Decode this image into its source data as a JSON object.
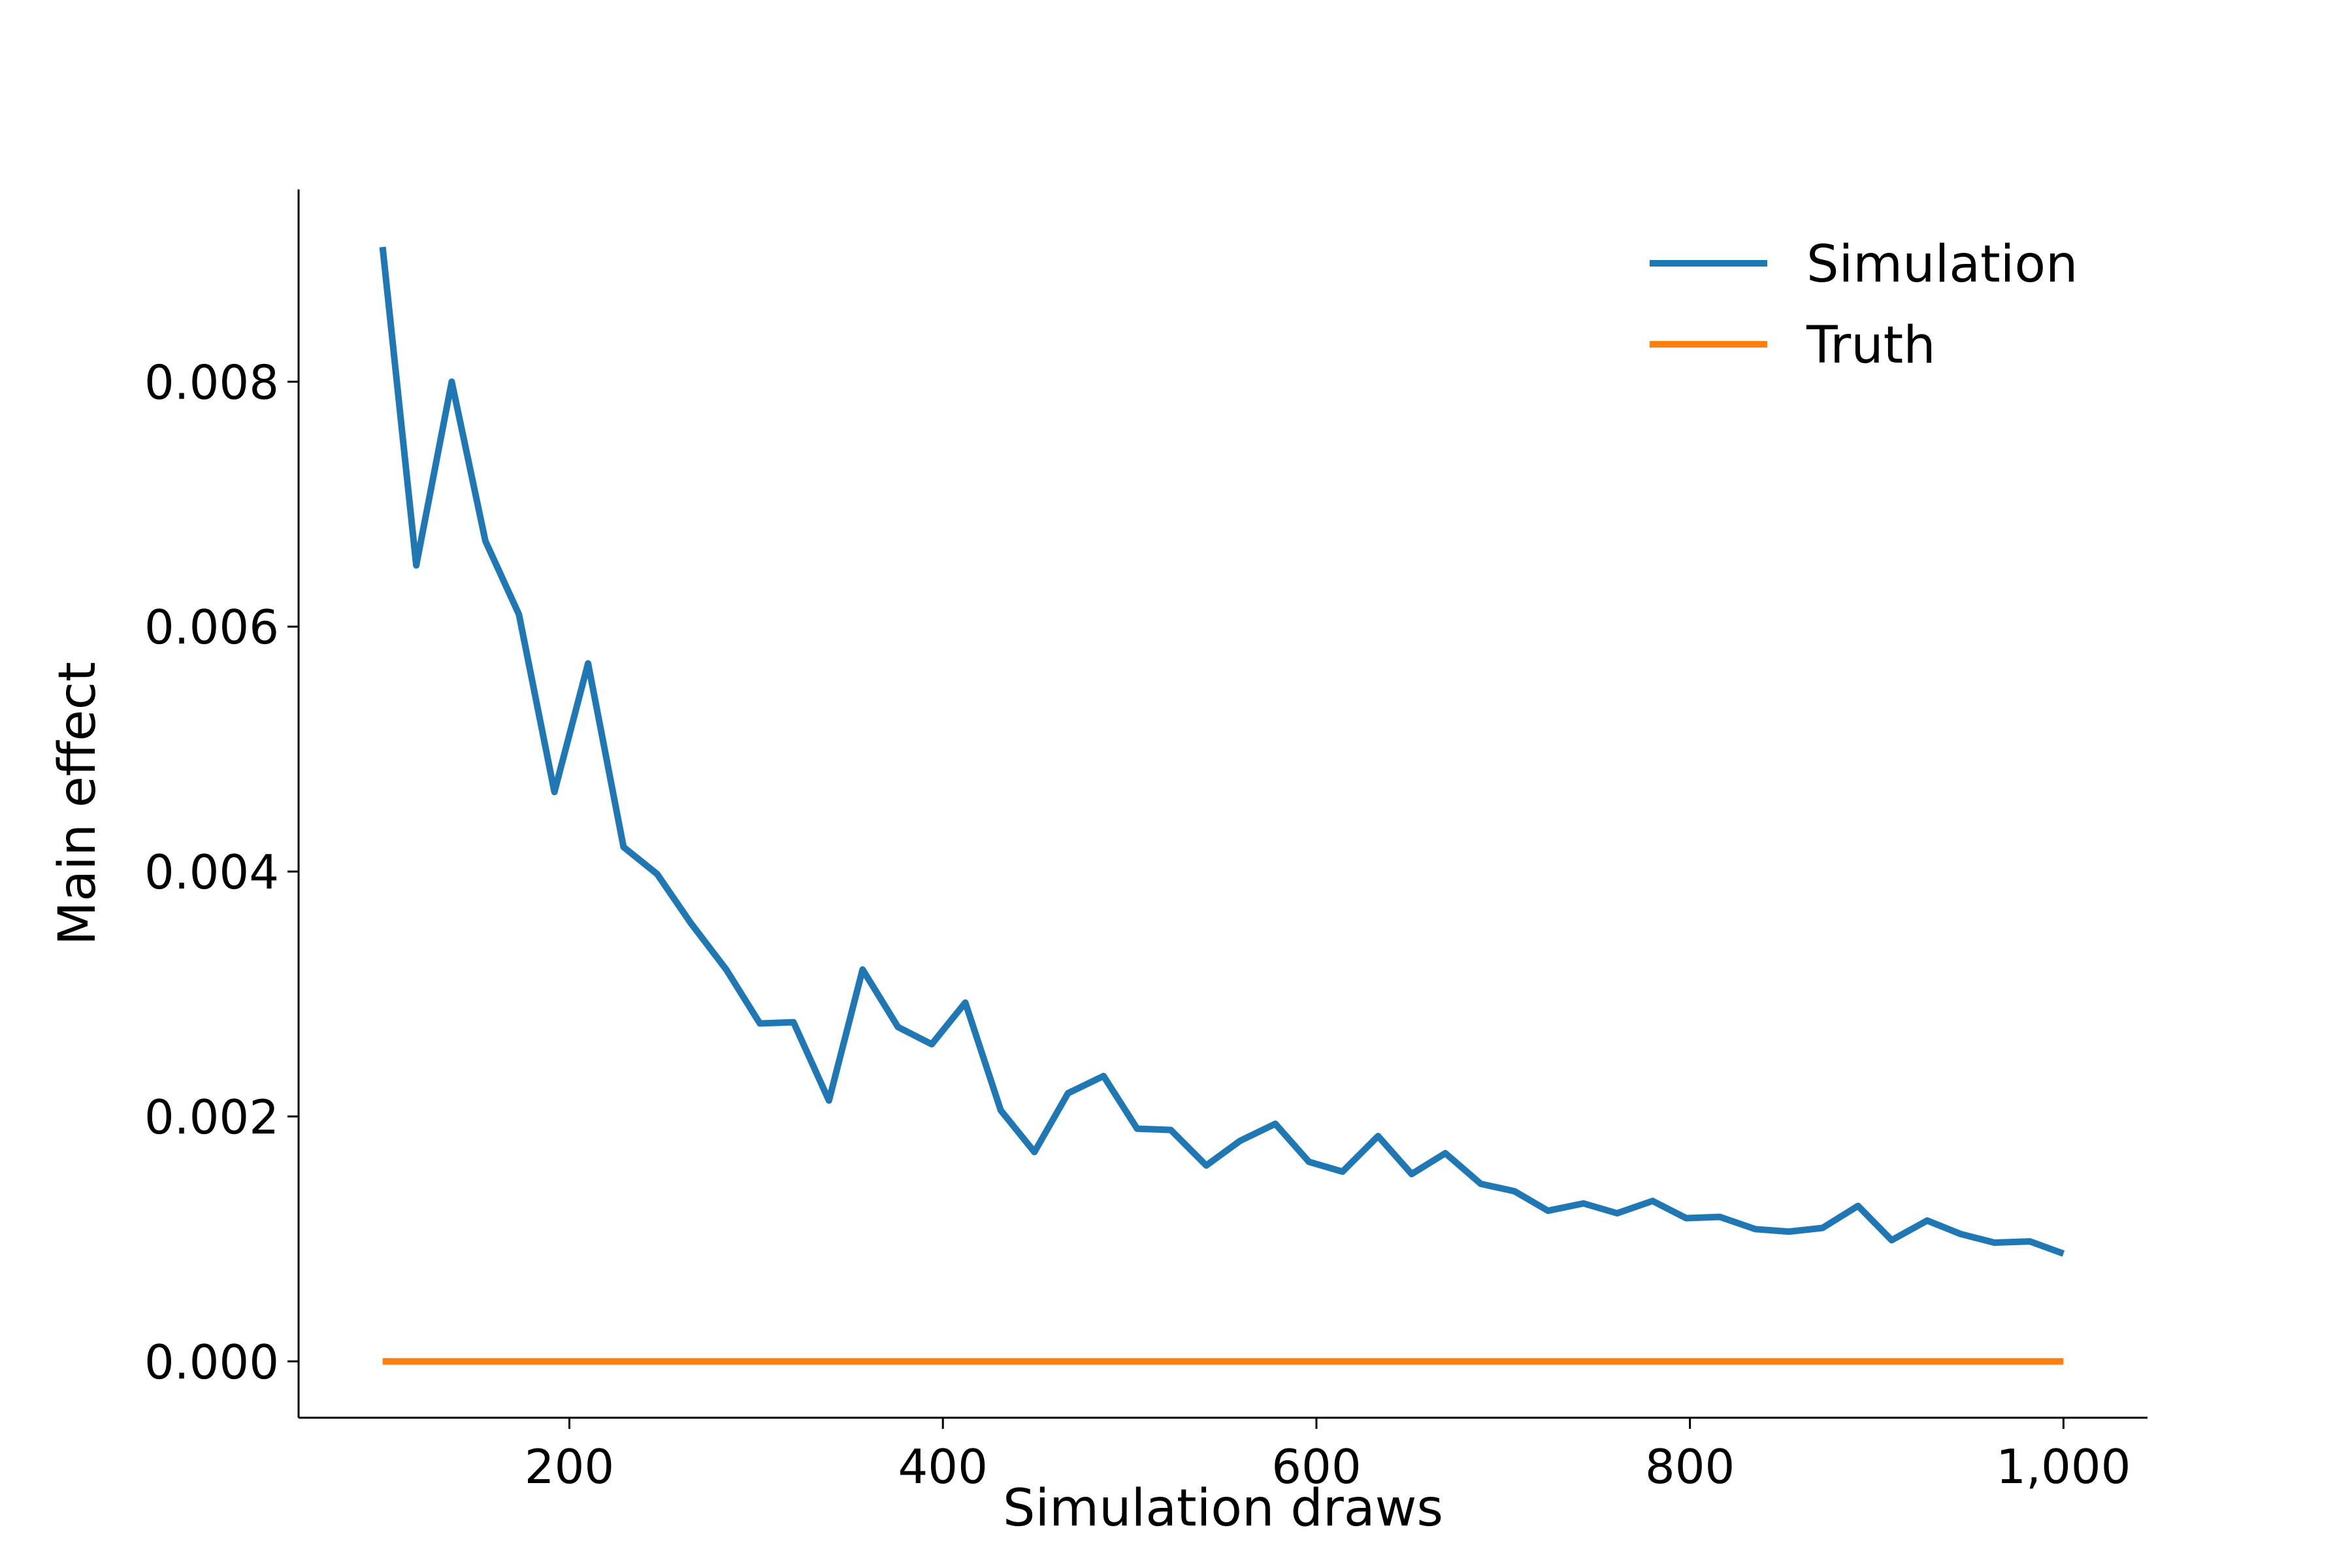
{
  "chart_data": {
    "type": "line",
    "xlabel": "Simulation draws",
    "ylabel": "Main effect",
    "xlim": [
      55,
      1045
    ],
    "ylim": [
      -0.00046,
      0.00957
    ],
    "xticks": [
      200,
      400,
      600,
      800,
      1000
    ],
    "xtick_labels": [
      "200",
      "400",
      "600",
      "800",
      "1,000"
    ],
    "yticks": [
      0.0,
      0.002,
      0.004,
      0.006,
      0.008
    ],
    "ytick_labels": [
      "0.000",
      "0.002",
      "0.004",
      "0.006",
      "0.008"
    ],
    "grid": false,
    "legend": "top-right",
    "series": [
      {
        "name": "Simulation",
        "color": "#1f77b4",
        "x": [
          100,
          118,
          137,
          155,
          173,
          192,
          210,
          229,
          247,
          265,
          284,
          302,
          320,
          339,
          357,
          376,
          394,
          412,
          431,
          449,
          467,
          486,
          504,
          522,
          541,
          559,
          578,
          596,
          614,
          633,
          651,
          669,
          688,
          706,
          724,
          743,
          761,
          780,
          798,
          816,
          835,
          853,
          871,
          890,
          908,
          927,
          945,
          963,
          982,
          1000
        ],
        "y": [
          0.0091,
          0.0065,
          0.008,
          0.0067,
          0.0061,
          0.00465,
          0.0057,
          0.0042,
          0.00398,
          0.00358,
          0.0032,
          0.00276,
          0.00277,
          0.00213,
          0.0032,
          0.00273,
          0.00259,
          0.00293,
          0.00205,
          0.00171,
          0.00219,
          0.00233,
          0.0019,
          0.00189,
          0.0016,
          0.0018,
          0.00194,
          0.00163,
          0.00155,
          0.00184,
          0.00153,
          0.0017,
          0.00145,
          0.00139,
          0.00123,
          0.00129,
          0.00121,
          0.00131,
          0.00117,
          0.00118,
          0.00108,
          0.00106,
          0.00109,
          0.00127,
          0.00099,
          0.00115,
          0.00104,
          0.00097,
          0.00098,
          0.00088
        ]
      },
      {
        "name": "Truth",
        "color": "#ff7f0e",
        "x": [
          100,
          1000
        ],
        "y": [
          0.0,
          0.0
        ]
      }
    ]
  }
}
